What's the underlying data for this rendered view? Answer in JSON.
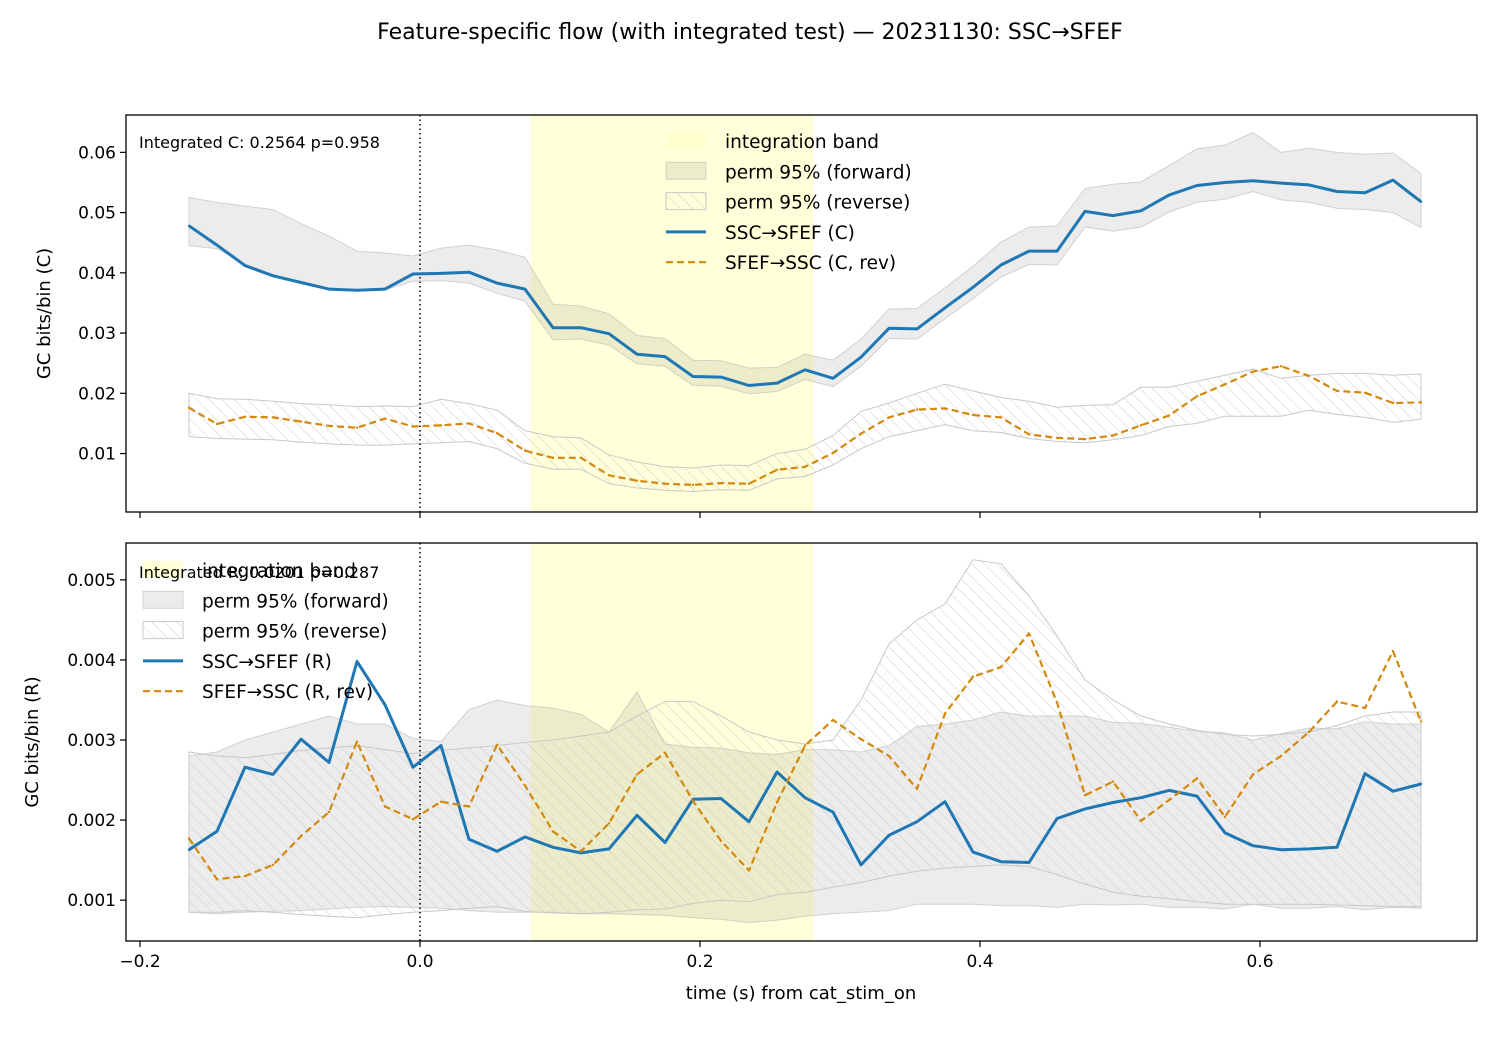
{
  "suptitle": "Feature-specific flow (with integrated test) — 20231130: SSC→SFEF",
  "xlabel": "time (s) from cat_stim_on",
  "colors": {
    "forward": "#1f77b4",
    "reverse": "#d4890e",
    "band": "#ffffcc",
    "perm": "#e5e5e5",
    "hatch": "#cccccc"
  },
  "chart_data": [
    {
      "type": "line",
      "panel": "top",
      "ylabel": "GC bits/bin (C)",
      "annotation": "Integrated C: 0.2564  p=0.958",
      "xlim": [
        -0.21,
        0.755
      ],
      "ylim": [
        0.0003,
        0.0662
      ],
      "xticks": [
        -0.2,
        0.0,
        0.2,
        0.4,
        0.6
      ],
      "xtick_labels": [],
      "yticks": [
        0.01,
        0.02,
        0.03,
        0.04,
        0.05,
        0.06
      ],
      "ytick_labels": [
        "0.01",
        "0.02",
        "0.03",
        "0.04",
        "0.05",
        "0.06"
      ],
      "legend_position": "upper-center",
      "legend": [
        {
          "kind": "band",
          "label": "integration band"
        },
        {
          "kind": "perm_fwd",
          "label": "perm 95% (forward)"
        },
        {
          "kind": "perm_rev",
          "label": "perm 95% (reverse)"
        },
        {
          "kind": "fwd",
          "label": "SSC→SFEF (C)"
        },
        {
          "kind": "rev",
          "label": "SFEF→SSC (C, rev)"
        }
      ],
      "integration_band": [
        0.079,
        0.281
      ],
      "stim_onset_x": 0.0,
      "x": [
        -0.165,
        -0.145,
        -0.125,
        -0.105,
        -0.085,
        -0.065,
        -0.045,
        -0.025,
        -0.005,
        0.015,
        0.035,
        0.055,
        0.075,
        0.095,
        0.115,
        0.135,
        0.155,
        0.175,
        0.195,
        0.215,
        0.235,
        0.255,
        0.275,
        0.295,
        0.315,
        0.335,
        0.355,
        0.375,
        0.395,
        0.415,
        0.435,
        0.455,
        0.475,
        0.495,
        0.515,
        0.535,
        0.555,
        0.575,
        0.595,
        0.615,
        0.635,
        0.655,
        0.675,
        0.695,
        0.715
      ],
      "series": [
        {
          "name": "SSC→SFEF (C)",
          "role": "fwd",
          "values": [
            0.0478,
            0.0446,
            0.0412,
            0.0395,
            0.0384,
            0.0373,
            0.0371,
            0.0373,
            0.0398,
            0.0399,
            0.0401,
            0.0383,
            0.0373,
            0.0309,
            0.0309,
            0.0299,
            0.0265,
            0.0261,
            0.0228,
            0.0227,
            0.0213,
            0.0217,
            0.0239,
            0.0225,
            0.026,
            0.0308,
            0.0307,
            0.0342,
            0.0376,
            0.0413,
            0.0436,
            0.0436,
            0.0502,
            0.0495,
            0.0503,
            0.0529,
            0.0545,
            0.055,
            0.0553,
            0.0549,
            0.0546,
            0.0535,
            0.0533,
            0.0554,
            0.0518
          ]
        },
        {
          "name": "SFEF→SSC (C, rev)",
          "role": "rev",
          "values": [
            0.0176,
            0.0149,
            0.0161,
            0.016,
            0.0153,
            0.0146,
            0.0143,
            0.0158,
            0.0145,
            0.0147,
            0.015,
            0.0134,
            0.0105,
            0.0093,
            0.0093,
            0.0064,
            0.0055,
            0.005,
            0.0048,
            0.0051,
            0.005,
            0.0073,
            0.0078,
            0.0101,
            0.0133,
            0.016,
            0.0173,
            0.0175,
            0.0164,
            0.016,
            0.0132,
            0.0126,
            0.0124,
            0.013,
            0.0147,
            0.0163,
            0.0195,
            0.0215,
            0.0236,
            0.0245,
            0.0229,
            0.0204,
            0.0201,
            0.0184,
            0.0185
          ]
        }
      ],
      "perm_forward": {
        "lower": [
          0.0445,
          0.044,
          0.0415,
          0.0397,
          0.0385,
          0.0374,
          0.037,
          0.0372,
          0.0386,
          0.0387,
          0.0383,
          0.0366,
          0.0353,
          0.0289,
          0.029,
          0.028,
          0.0249,
          0.0245,
          0.0213,
          0.0212,
          0.0199,
          0.0203,
          0.0223,
          0.0211,
          0.0245,
          0.0291,
          0.029,
          0.0324,
          0.0357,
          0.0393,
          0.0414,
          0.0413,
          0.0476,
          0.0469,
          0.0476,
          0.0501,
          0.0517,
          0.0522,
          0.0535,
          0.0521,
          0.0517,
          0.0507,
          0.0505,
          0.05,
          0.0475
        ],
        "upper": [
          0.0525,
          0.0517,
          0.0511,
          0.0505,
          0.0482,
          0.0461,
          0.0436,
          0.0433,
          0.0428,
          0.0441,
          0.0446,
          0.0438,
          0.0426,
          0.0348,
          0.0345,
          0.0332,
          0.0296,
          0.0291,
          0.0255,
          0.0254,
          0.0242,
          0.0243,
          0.0265,
          0.0255,
          0.029,
          0.034,
          0.0341,
          0.0375,
          0.0411,
          0.0451,
          0.0476,
          0.0478,
          0.054,
          0.0547,
          0.0551,
          0.0578,
          0.0606,
          0.0612,
          0.0633,
          0.06,
          0.0607,
          0.06,
          0.0597,
          0.0599,
          0.0565
        ]
      },
      "perm_reverse": {
        "lower": [
          0.0128,
          0.0125,
          0.0124,
          0.0123,
          0.0119,
          0.0116,
          0.0114,
          0.0114,
          0.0116,
          0.0118,
          0.012,
          0.0108,
          0.0084,
          0.0074,
          0.0074,
          0.005,
          0.0043,
          0.0039,
          0.0037,
          0.004,
          0.0039,
          0.0058,
          0.0062,
          0.0081,
          0.0108,
          0.0128,
          0.0138,
          0.0148,
          0.0138,
          0.0135,
          0.0125,
          0.012,
          0.0118,
          0.0123,
          0.013,
          0.0145,
          0.015,
          0.0162,
          0.0162,
          0.0162,
          0.0172,
          0.0165,
          0.016,
          0.0152,
          0.0157
        ],
        "upper": [
          0.02,
          0.0191,
          0.019,
          0.0187,
          0.0183,
          0.0181,
          0.0178,
          0.0179,
          0.0178,
          0.019,
          0.0183,
          0.0172,
          0.0138,
          0.0128,
          0.0126,
          0.0098,
          0.0086,
          0.0078,
          0.0076,
          0.0081,
          0.008,
          0.01,
          0.0107,
          0.013,
          0.017,
          0.0184,
          0.02,
          0.0215,
          0.0204,
          0.0193,
          0.0187,
          0.0177,
          0.018,
          0.0181,
          0.021,
          0.021,
          0.022,
          0.023,
          0.024,
          0.0225,
          0.023,
          0.0233,
          0.0233,
          0.023,
          0.0232
        ]
      }
    },
    {
      "type": "line",
      "panel": "bottom",
      "ylabel": "GC bits/bin (R)",
      "annotation": "Integrated R: 0.0201  p=0.287",
      "xlim": [
        -0.21,
        0.755
      ],
      "ylim": [
        0.00049,
        0.00546
      ],
      "xticks": [
        -0.2,
        0.0,
        0.2,
        0.4,
        0.6
      ],
      "xtick_labels": [
        "−0.2",
        "0.0",
        "0.2",
        "0.4",
        "0.6"
      ],
      "yticks": [
        0.001,
        0.002,
        0.003,
        0.004,
        0.005
      ],
      "ytick_labels": [
        "0.001",
        "0.002",
        "0.003",
        "0.004",
        "0.005"
      ],
      "legend_position": "upper-left",
      "legend": [
        {
          "kind": "band",
          "label": "integration band"
        },
        {
          "kind": "perm_fwd",
          "label": "perm 95% (forward)"
        },
        {
          "kind": "perm_rev",
          "label": "perm 95% (reverse)"
        },
        {
          "kind": "fwd",
          "label": "SSC→SFEF (R)"
        },
        {
          "kind": "rev",
          "label": "SFEF→SSC (R, rev)"
        }
      ],
      "integration_band": [
        0.079,
        0.281
      ],
      "stim_onset_x": 0.0,
      "x": [
        -0.165,
        -0.145,
        -0.125,
        -0.105,
        -0.085,
        -0.065,
        -0.045,
        -0.025,
        -0.005,
        0.015,
        0.035,
        0.055,
        0.075,
        0.095,
        0.115,
        0.135,
        0.155,
        0.175,
        0.195,
        0.215,
        0.235,
        0.255,
        0.275,
        0.295,
        0.315,
        0.335,
        0.355,
        0.375,
        0.395,
        0.415,
        0.435,
        0.455,
        0.475,
        0.495,
        0.515,
        0.535,
        0.555,
        0.575,
        0.595,
        0.615,
        0.635,
        0.655,
        0.675,
        0.695,
        0.715
      ],
      "series": [
        {
          "name": "SSC→SFEF (R)",
          "role": "fwd",
          "values": [
            0.00163,
            0.00186,
            0.00266,
            0.00257,
            0.00301,
            0.00272,
            0.00398,
            0.00344,
            0.00266,
            0.00293,
            0.00176,
            0.00161,
            0.00179,
            0.00166,
            0.00159,
            0.00164,
            0.00206,
            0.00172,
            0.00226,
            0.00227,
            0.00198,
            0.0026,
            0.00228,
            0.0021,
            0.00144,
            0.00181,
            0.00198,
            0.00223,
            0.0016,
            0.00148,
            0.00147,
            0.00202,
            0.00214,
            0.00222,
            0.00228,
            0.00237,
            0.0023,
            0.00184,
            0.00168,
            0.00163,
            0.00164,
            0.00166,
            0.00258,
            0.00236,
            0.00245
          ]
        },
        {
          "name": "SFEF→SSC (R, rev)",
          "role": "rev",
          "values": [
            0.00177,
            0.00126,
            0.0013,
            0.00144,
            0.0018,
            0.0021,
            0.00298,
            0.00217,
            0.00201,
            0.00223,
            0.00217,
            0.00294,
            0.00243,
            0.00186,
            0.00161,
            0.00196,
            0.00257,
            0.00284,
            0.00224,
            0.00174,
            0.00137,
            0.00222,
            0.00293,
            0.00325,
            0.00301,
            0.0028,
            0.00239,
            0.00333,
            0.00379,
            0.00391,
            0.00433,
            0.00347,
            0.00231,
            0.00248,
            0.00199,
            0.00225,
            0.00252,
            0.00204,
            0.00257,
            0.0028,
            0.0031,
            0.00348,
            0.0034,
            0.00411,
            0.00323
          ]
        }
      ],
      "perm_forward": {
        "lower": [
          0.00085,
          0.00083,
          0.00085,
          0.00086,
          0.00087,
          0.00089,
          0.00091,
          0.00092,
          0.00091,
          0.0009,
          0.00087,
          0.00085,
          0.00085,
          0.00085,
          0.00083,
          0.00083,
          0.00082,
          0.00081,
          0.00078,
          0.00076,
          0.00072,
          0.00075,
          0.0008,
          0.00083,
          0.00085,
          0.00087,
          0.00095,
          0.00095,
          0.00095,
          0.00093,
          0.00093,
          0.00091,
          0.00095,
          0.00094,
          0.00095,
          0.00091,
          0.00091,
          0.00089,
          0.00095,
          0.0009,
          0.0009,
          0.00092,
          0.00088,
          0.00091,
          0.0009
        ],
        "upper": [
          0.0028,
          0.00285,
          0.003,
          0.0031,
          0.0032,
          0.0033,
          0.0032,
          0.0032,
          0.00302,
          0.00298,
          0.00338,
          0.0035,
          0.00343,
          0.0034,
          0.00332,
          0.0031,
          0.0036,
          0.00295,
          0.00291,
          0.0029,
          0.00284,
          0.00282,
          0.00288,
          0.00288,
          0.00285,
          0.00293,
          0.00317,
          0.0032,
          0.00325,
          0.00335,
          0.0033,
          0.0033,
          0.0033,
          0.00322,
          0.00321,
          0.00316,
          0.00311,
          0.00309,
          0.003,
          0.00308,
          0.00315,
          0.00314,
          0.00323,
          0.0032,
          0.0032
        ]
      },
      "perm_reverse": {
        "lower": [
          0.00085,
          0.00085,
          0.00087,
          0.00085,
          0.00082,
          0.0008,
          0.00078,
          0.00082,
          0.00085,
          0.00087,
          0.0009,
          0.00092,
          0.00086,
          0.00084,
          0.00083,
          0.00085,
          0.00088,
          0.00089,
          0.00096,
          0.001,
          0.00098,
          0.00107,
          0.0011,
          0.00116,
          0.00122,
          0.0013,
          0.00136,
          0.0014,
          0.00142,
          0.00144,
          0.00142,
          0.00132,
          0.0012,
          0.0011,
          0.00105,
          0.00102,
          0.00098,
          0.00095,
          0.00095,
          0.00095,
          0.00095,
          0.00094,
          0.00093,
          0.00092,
          0.00092
        ],
        "upper": [
          0.00285,
          0.0028,
          0.00278,
          0.00282,
          0.00287,
          0.0029,
          0.00293,
          0.00288,
          0.00283,
          0.00287,
          0.0029,
          0.00293,
          0.00297,
          0.003,
          0.00305,
          0.0031,
          0.0033,
          0.00348,
          0.00348,
          0.0033,
          0.0031,
          0.003,
          0.00295,
          0.003,
          0.0035,
          0.0042,
          0.0045,
          0.0047,
          0.00525,
          0.0052,
          0.0048,
          0.0043,
          0.00375,
          0.0035,
          0.0033,
          0.0032,
          0.00312,
          0.00307,
          0.00305,
          0.00307,
          0.0031,
          0.00318,
          0.0033,
          0.00335,
          0.00335
        ]
      }
    }
  ]
}
